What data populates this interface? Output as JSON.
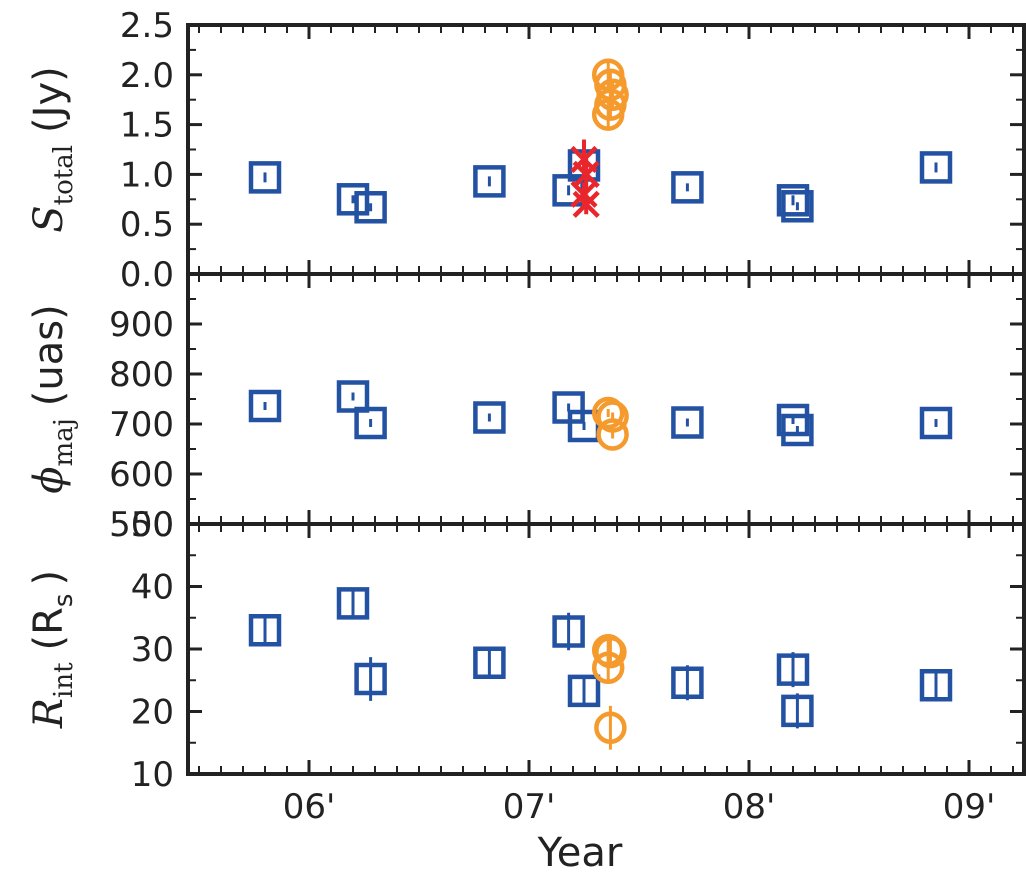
{
  "colors": {
    "square": "#2452a3",
    "circle": "#f59a2c",
    "cross": "#e8262c",
    "axis": "#222222"
  },
  "chart_data": {
    "type": "scatter",
    "xlabel": "Year",
    "x_ticks": [
      {
        "x": 2006.0,
        "label": "06'"
      },
      {
        "x": 2007.0,
        "label": "07'"
      },
      {
        "x": 2008.0,
        "label": "08'"
      },
      {
        "x": 2009.0,
        "label": "09'"
      }
    ],
    "xlim": [
      2005.45,
      2009.25
    ],
    "panels": [
      {
        "ylabel": "S_total (Jy)",
        "ylabel_main": "S",
        "ylabel_sub": "total",
        "ylabel_unit": "(Jy)",
        "ylim": [
          0.0,
          2.5
        ],
        "yticks": [
          "0.0",
          "0.5",
          "1.0",
          "1.5",
          "2.0",
          "2.5"
        ],
        "ytick_values": [
          0.0,
          0.5,
          1.0,
          1.5,
          2.0,
          2.5
        ],
        "series": [
          {
            "marker": "square",
            "points": [
              {
                "x": 2005.8,
                "y": 0.97,
                "err": 0.05
              },
              {
                "x": 2006.2,
                "y": 0.75,
                "err": 0.04
              },
              {
                "x": 2006.28,
                "y": 0.67,
                "err": 0.04
              },
              {
                "x": 2006.82,
                "y": 0.93,
                "err": 0.05
              },
              {
                "x": 2007.18,
                "y": 0.84,
                "err": 0.05
              },
              {
                "x": 2007.25,
                "y": 1.09,
                "err": 0.06
              },
              {
                "x": 2007.72,
                "y": 0.87,
                "err": 0.04
              },
              {
                "x": 2008.2,
                "y": 0.74,
                "err": 0.05
              },
              {
                "x": 2008.22,
                "y": 0.68,
                "err": 0.04
              },
              {
                "x": 2008.85,
                "y": 1.07,
                "err": 0.05
              }
            ]
          },
          {
            "marker": "circle",
            "points": [
              {
                "x": 2007.36,
                "y": 2.0,
                "err": 0.13
              },
              {
                "x": 2007.37,
                "y": 1.9,
                "err": 0.13
              },
              {
                "x": 2007.38,
                "y": 1.8,
                "err": 0.13
              },
              {
                "x": 2007.37,
                "y": 1.7,
                "err": 0.13
              },
              {
                "x": 2007.36,
                "y": 1.6,
                "err": 0.13
              }
            ]
          },
          {
            "marker": "cross",
            "points": [
              {
                "x": 2007.25,
                "y": 1.15,
                "err": 0.2
              },
              {
                "x": 2007.26,
                "y": 1.0,
                "err": 0.16
              },
              {
                "x": 2007.25,
                "y": 0.8,
                "err": 0.12
              },
              {
                "x": 2007.26,
                "y": 0.7,
                "err": 0.1
              }
            ]
          }
        ]
      },
      {
        "ylabel": "phi_maj (uas)",
        "ylabel_main": "ϕ",
        "ylabel_sub": "maj",
        "ylabel_unit": "(uas)",
        "ylim": [
          500,
          1000
        ],
        "yticks": [
          "500",
          "600",
          "700",
          "800",
          "900"
        ],
        "ytick_values": [
          500,
          600,
          700,
          800,
          900
        ],
        "series": [
          {
            "marker": "square",
            "points": [
              {
                "x": 2005.8,
                "y": 736,
                "err": 8
              },
              {
                "x": 2006.2,
                "y": 755,
                "err": 8
              },
              {
                "x": 2006.28,
                "y": 702,
                "err": 8
              },
              {
                "x": 2006.82,
                "y": 713,
                "err": 8
              },
              {
                "x": 2007.18,
                "y": 733,
                "err": 8
              },
              {
                "x": 2007.25,
                "y": 696,
                "err": 8
              },
              {
                "x": 2007.72,
                "y": 703,
                "err": 6
              },
              {
                "x": 2008.2,
                "y": 708,
                "err": 8
              },
              {
                "x": 2008.22,
                "y": 688,
                "err": 6
              },
              {
                "x": 2008.85,
                "y": 702,
                "err": 6
              }
            ]
          },
          {
            "marker": "circle",
            "points": [
              {
                "x": 2007.36,
                "y": 722,
                "err": 6
              },
              {
                "x": 2007.38,
                "y": 715,
                "err": 6
              },
              {
                "x": 2007.38,
                "y": 679,
                "err": 6
              }
            ]
          }
        ]
      },
      {
        "ylabel": "R_int (R_s)",
        "ylabel_main": "R",
        "ylabel_sub": "int",
        "ylabel_unit_open": "(R",
        "ylabel_unit_sub": "s",
        "ylabel_unit_close": ")",
        "ylim": [
          10,
          50
        ],
        "yticks": [
          "10",
          "20",
          "30",
          "40",
          "50"
        ],
        "ytick_values": [
          10,
          20,
          30,
          40,
          50
        ],
        "series": [
          {
            "marker": "square",
            "points": [
              {
                "x": 2005.8,
                "y": 33.0,
                "err": 2.5
              },
              {
                "x": 2006.2,
                "y": 37.3,
                "err": 2.0
              },
              {
                "x": 2006.28,
                "y": 25.2,
                "err": 3.5
              },
              {
                "x": 2006.82,
                "y": 27.8,
                "err": 2.0
              },
              {
                "x": 2007.18,
                "y": 32.8,
                "err": 3.0
              },
              {
                "x": 2007.25,
                "y": 23.3,
                "err": 2.0
              },
              {
                "x": 2007.72,
                "y": 24.6,
                "err": 2.8
              },
              {
                "x": 2008.2,
                "y": 26.7,
                "err": 2.8
              },
              {
                "x": 2008.22,
                "y": 20.1,
                "err": 2.8
              },
              {
                "x": 2008.85,
                "y": 24.2,
                "err": 2.0
              }
            ]
          },
          {
            "marker": "circle",
            "points": [
              {
                "x": 2007.36,
                "y": 29.8,
                "err": 2.0
              },
              {
                "x": 2007.37,
                "y": 29.5,
                "err": 2.0
              },
              {
                "x": 2007.36,
                "y": 27.0,
                "err": 2.0
              },
              {
                "x": 2007.37,
                "y": 17.4,
                "err": 3.5
              }
            ]
          }
        ]
      }
    ]
  }
}
